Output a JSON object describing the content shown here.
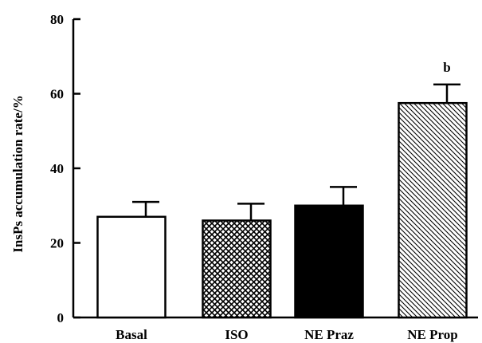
{
  "chart_data": {
    "type": "bar",
    "title": "",
    "xlabel": "",
    "ylabel": "InsPs accumulation rate/%",
    "ylim": [
      0,
      80
    ],
    "yticks": [
      0,
      20,
      40,
      60,
      80
    ],
    "grid": false,
    "categories": [
      "Basal",
      "ISO",
      "NE Praz",
      "NE Prop"
    ],
    "values": [
      27,
      26,
      30,
      57.5
    ],
    "errors": [
      4,
      4.5,
      5,
      5
    ],
    "fills": [
      "white",
      "crosshatch",
      "black",
      "diagonal-hatch"
    ],
    "annotations": [
      {
        "category": "NE Prop",
        "text": "b"
      }
    ]
  }
}
